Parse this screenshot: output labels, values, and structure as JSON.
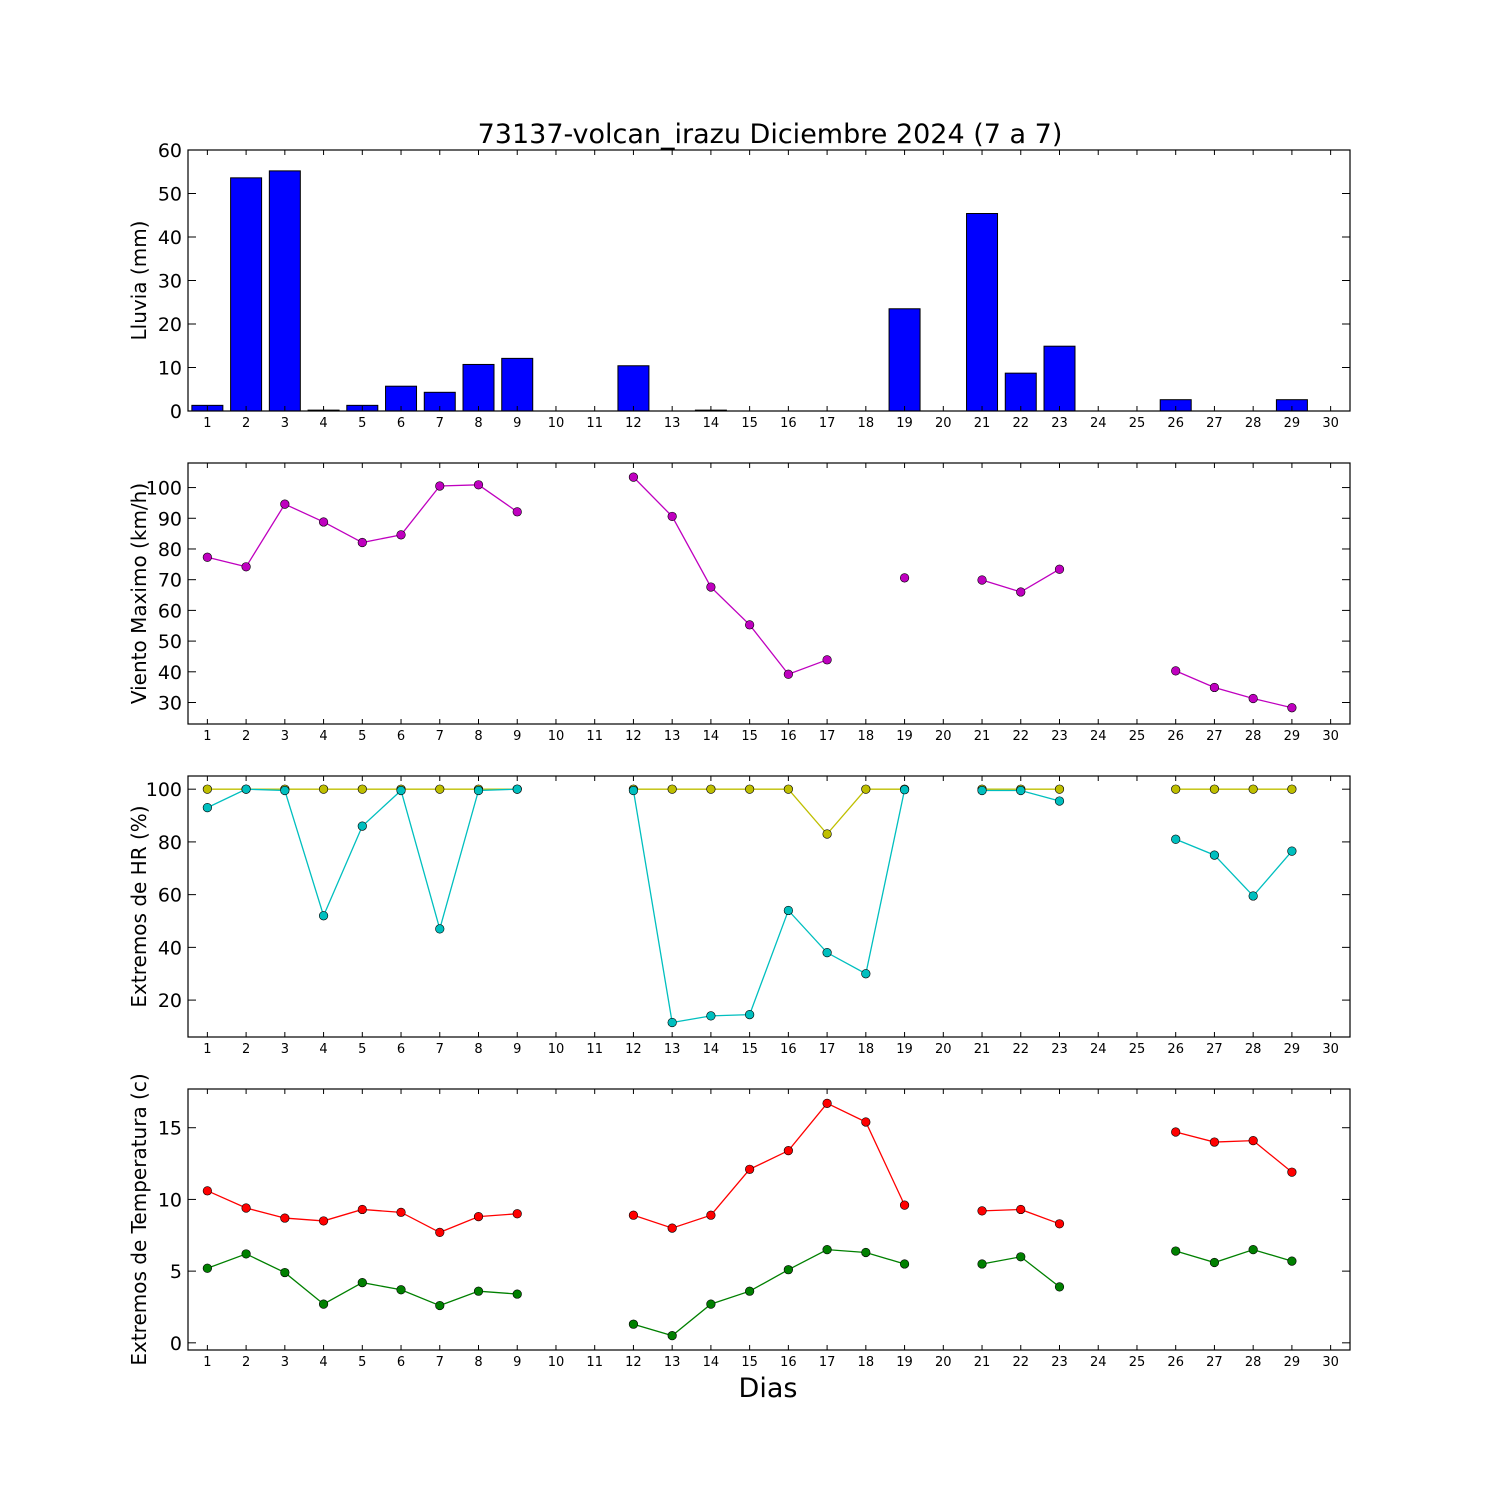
{
  "title": "73137-volcan_irazu Diciembre 2024  (7 a 7)",
  "xlabel": "Dias",
  "x_ticks": [
    "1",
    "2",
    "3",
    "4",
    "5",
    "6",
    "7",
    "8",
    "9",
    "10",
    "11",
    "12",
    "13",
    "14",
    "15",
    "16",
    "17",
    "18",
    "19",
    "20",
    "21",
    "22",
    "23",
    "24",
    "25",
    "26",
    "27",
    "28",
    "29",
    "30"
  ],
  "colors": {
    "rain": "#0000ff",
    "wind": "#bf00bf",
    "hr_max": "#bfbf00",
    "hr_min": "#00bfbf",
    "temp_max": "#ff0000",
    "temp_min": "#008000"
  },
  "chart_data": [
    {
      "type": "bar",
      "ylabel": "Lluvia (mm)",
      "ylim": [
        0,
        60
      ],
      "y_ticks": [
        0,
        10,
        20,
        30,
        40,
        50,
        60
      ],
      "xlim": [
        0.5,
        30.5
      ],
      "grid": false,
      "series": [
        {
          "color_key": "rain",
          "x": [
            1,
            2,
            3,
            4,
            5,
            6,
            7,
            8,
            9,
            10,
            11,
            12,
            13,
            14,
            15,
            16,
            17,
            18,
            19,
            20,
            21,
            22,
            23,
            24,
            25,
            26,
            27,
            28,
            29,
            30
          ],
          "values": [
            1.3,
            53.6,
            55.2,
            0.2,
            1.3,
            5.7,
            4.3,
            10.7,
            12.1,
            0,
            0,
            10.4,
            0,
            0.2,
            0,
            0,
            0,
            0,
            23.5,
            0,
            45.4,
            8.7,
            14.9,
            0,
            0,
            2.6,
            0,
            0,
            2.6,
            0
          ]
        }
      ]
    },
    {
      "type": "line",
      "ylabel": "Viento Maximo (km/h)",
      "ylim": [
        23,
        108
      ],
      "y_ticks": [
        30,
        40,
        50,
        60,
        70,
        80,
        90,
        100
      ],
      "xlim": [
        0.5,
        30.5
      ],
      "grid": false,
      "series": [
        {
          "color_key": "wind",
          "x": [
            1,
            2,
            3,
            4,
            5,
            6,
            7,
            8,
            9,
            10,
            11,
            12,
            13,
            14,
            15,
            16,
            17,
            18,
            19,
            20,
            21,
            22,
            23,
            24,
            25,
            26,
            27,
            28,
            29,
            30
          ],
          "values": [
            77.3,
            74.2,
            94.6,
            88.8,
            82.1,
            84.6,
            100.5,
            100.9,
            92.1,
            null,
            null,
            103.4,
            90.6,
            67.6,
            55.3,
            39.2,
            43.9,
            null,
            70.6,
            null,
            69.9,
            66.0,
            73.4,
            null,
            null,
            40.3,
            34.9,
            31.3,
            28.3,
            null
          ]
        }
      ]
    },
    {
      "type": "line",
      "ylabel": "Extremos de HR (%)",
      "ylim": [
        6,
        105
      ],
      "y_ticks": [
        20,
        40,
        60,
        80,
        100
      ],
      "xlim": [
        0.5,
        30.5
      ],
      "grid": false,
      "series": [
        {
          "color_key": "hr_max",
          "x": [
            1,
            2,
            3,
            4,
            5,
            6,
            7,
            8,
            9,
            10,
            11,
            12,
            13,
            14,
            15,
            16,
            17,
            18,
            19,
            20,
            21,
            22,
            23,
            24,
            25,
            26,
            27,
            28,
            29,
            30
          ],
          "values": [
            100,
            100,
            100,
            100,
            100,
            100,
            100,
            100,
            100,
            null,
            null,
            100,
            100,
            100,
            100,
            100,
            83,
            100,
            100,
            null,
            100,
            100,
            100,
            null,
            null,
            100,
            100,
            100,
            100,
            null
          ]
        },
        {
          "color_key": "hr_min",
          "x": [
            1,
            2,
            3,
            4,
            5,
            6,
            7,
            8,
            9,
            10,
            11,
            12,
            13,
            14,
            15,
            16,
            17,
            18,
            19,
            20,
            21,
            22,
            23,
            24,
            25,
            26,
            27,
            28,
            29,
            30
          ],
          "values": [
            93,
            100,
            99.5,
            52,
            86,
            99.5,
            47,
            99.5,
            100,
            null,
            null,
            99.5,
            11.5,
            14,
            14.5,
            54,
            38,
            30,
            99.8,
            null,
            99.5,
            99.5,
            95.5,
            null,
            null,
            81,
            75,
            59.5,
            76.5,
            null
          ]
        }
      ]
    },
    {
      "type": "line",
      "ylabel": "Extremos de Temperatura (c)",
      "ylim": [
        -0.5,
        17.7
      ],
      "y_ticks": [
        0,
        5,
        10,
        15
      ],
      "xlim": [
        0.5,
        30.5
      ],
      "grid": false,
      "series": [
        {
          "color_key": "temp_max",
          "x": [
            1,
            2,
            3,
            4,
            5,
            6,
            7,
            8,
            9,
            10,
            11,
            12,
            13,
            14,
            15,
            16,
            17,
            18,
            19,
            20,
            21,
            22,
            23,
            24,
            25,
            26,
            27,
            28,
            29,
            30
          ],
          "values": [
            10.6,
            9.4,
            8.7,
            8.5,
            9.3,
            9.1,
            7.7,
            8.8,
            9.0,
            null,
            null,
            8.9,
            8.0,
            8.9,
            12.1,
            13.4,
            16.7,
            15.4,
            9.6,
            null,
            9.2,
            9.3,
            8.3,
            null,
            null,
            14.7,
            14.0,
            14.1,
            11.9,
            null
          ]
        },
        {
          "color_key": "temp_min",
          "x": [
            1,
            2,
            3,
            4,
            5,
            6,
            7,
            8,
            9,
            10,
            11,
            12,
            13,
            14,
            15,
            16,
            17,
            18,
            19,
            20,
            21,
            22,
            23,
            24,
            25,
            26,
            27,
            28,
            29,
            30
          ],
          "values": [
            5.2,
            6.2,
            4.9,
            2.7,
            4.2,
            3.7,
            2.6,
            3.6,
            3.4,
            null,
            null,
            1.3,
            0.5,
            2.7,
            3.6,
            5.1,
            6.5,
            6.3,
            5.5,
            null,
            5.5,
            6.0,
            3.9,
            null,
            null,
            6.4,
            5.6,
            6.5,
            5.7,
            null
          ]
        }
      ]
    }
  ]
}
